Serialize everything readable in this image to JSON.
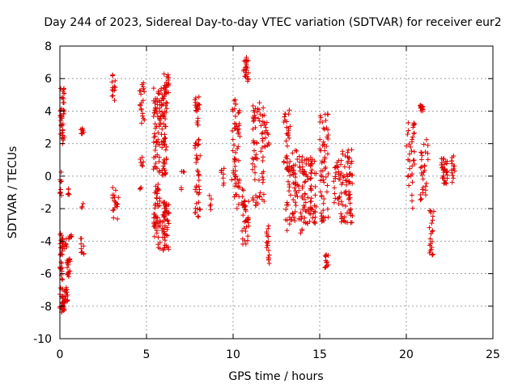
{
  "chart_data": {
    "type": "scatter",
    "title": "Day 244 of 2023, Sidereal Day-to-day VTEC variation (SDTVAR) for receiver eur2",
    "xlabel": "GPS time / hours",
    "ylabel": "SDTVAR / TECUs",
    "xlim": [
      0,
      25
    ],
    "ylim": [
      -10,
      8
    ],
    "xticks": [
      0,
      5,
      10,
      15,
      20,
      25
    ],
    "yticks": [
      -10,
      -8,
      -6,
      -4,
      -2,
      0,
      2,
      4,
      6,
      8
    ],
    "grid": true,
    "marker": "+",
    "marker_color": "#e00000",
    "series": [
      {
        "name": "SDTVAR",
        "clusters": [
          {
            "x": [
              0.0,
              0.15
            ],
            "y": [
              -8.5,
              -3.5
            ],
            "n": 40
          },
          {
            "x": [
              0.0,
              0.25
            ],
            "y": [
              2.0,
              5.4
            ],
            "n": 40
          },
          {
            "x": [
              0.0,
              0.1
            ],
            "y": [
              -1.2,
              0.3
            ],
            "n": 10
          },
          {
            "x": [
              0.15,
              0.45
            ],
            "y": [
              -8.3,
              -6.8
            ],
            "n": 30
          },
          {
            "x": [
              0.15,
              0.4
            ],
            "y": [
              -4.5,
              -3.8
            ],
            "n": 12
          },
          {
            "x": [
              0.4,
              0.6
            ],
            "y": [
              -6.2,
              -5.0
            ],
            "n": 18
          },
          {
            "x": [
              0.5,
              0.7
            ],
            "y": [
              -4.0,
              -3.6
            ],
            "n": 6
          },
          {
            "x": [
              0.45,
              0.55
            ],
            "y": [
              -1.5,
              -0.7
            ],
            "n": 5
          },
          {
            "x": [
              1.2,
              1.4
            ],
            "y": [
              -4.8,
              -3.8
            ],
            "n": 10
          },
          {
            "x": [
              1.2,
              1.4
            ],
            "y": [
              2.4,
              3.0
            ],
            "n": 8
          },
          {
            "x": [
              1.25,
              1.35
            ],
            "y": [
              -2.4,
              -1.6
            ],
            "n": 3
          },
          {
            "x": [
              3.0,
              3.2
            ],
            "y": [
              4.6,
              6.3
            ],
            "n": 14
          },
          {
            "x": [
              3.0,
              3.4
            ],
            "y": [
              -2.8,
              -0.6
            ],
            "n": 18
          },
          {
            "x": [
              4.6,
              4.9
            ],
            "y": [
              3.0,
              5.8
            ],
            "n": 20
          },
          {
            "x": [
              4.6,
              4.9
            ],
            "y": [
              0.6,
              1.2
            ],
            "n": 6
          },
          {
            "x": [
              4.6,
              4.75
            ],
            "y": [
              -1.0,
              -0.6
            ],
            "n": 3
          },
          {
            "x": [
              5.4,
              6.2
            ],
            "y": [
              0.0,
              5.5
            ],
            "n": 120
          },
          {
            "x": [
              5.4,
              5.8
            ],
            "y": [
              -4.5,
              -0.5
            ],
            "n": 50
          },
          {
            "x": [
              5.9,
              6.3
            ],
            "y": [
              -4.6,
              -1.5
            ],
            "n": 50
          },
          {
            "x": [
              6.0,
              6.3
            ],
            "y": [
              5.0,
              6.3
            ],
            "n": 20
          },
          {
            "x": [
              7.0,
              7.2
            ],
            "y": [
              0.1,
              0.4
            ],
            "n": 3
          },
          {
            "x": [
              7.0,
              7.2
            ],
            "y": [
              -0.9,
              -0.6
            ],
            "n": 2
          },
          {
            "x": [
              7.8,
              8.1
            ],
            "y": [
              -2.6,
              5.0
            ],
            "n": 60
          },
          {
            "x": [
              8.6,
              8.8
            ],
            "y": [
              -2.4,
              -1.0
            ],
            "n": 5
          },
          {
            "x": [
              9.3,
              9.5
            ],
            "y": [
              -0.6,
              0.5
            ],
            "n": 8
          },
          {
            "x": [
              9.9,
              10.4
            ],
            "y": [
              -2.0,
              4.8
            ],
            "n": 60
          },
          {
            "x": [
              10.5,
              10.9
            ],
            "y": [
              -4.2,
              -0.8
            ],
            "n": 35
          },
          {
            "x": [
              10.6,
              10.9
            ],
            "y": [
              5.8,
              7.4
            ],
            "n": 25
          },
          {
            "x": [
              11.1,
              11.8
            ],
            "y": [
              -2.0,
              4.6
            ],
            "n": 70
          },
          {
            "x": [
              11.9,
              12.1
            ],
            "y": [
              -5.4,
              -2.6
            ],
            "n": 18
          },
          {
            "x": [
              11.8,
              12.1
            ],
            "y": [
              1.8,
              3.3
            ],
            "n": 14
          },
          {
            "x": [
              12.9,
              13.3
            ],
            "y": [
              0.0,
              4.3
            ],
            "n": 30
          },
          {
            "x": [
              13.0,
              14.0
            ],
            "y": [
              -3.5,
              1.8
            ],
            "n": 80
          },
          {
            "x": [
              14.0,
              14.8
            ],
            "y": [
              -3.0,
              1.2
            ],
            "n": 80
          },
          {
            "x": [
              15.0,
              15.5
            ],
            "y": [
              -2.8,
              4.0
            ],
            "n": 60
          },
          {
            "x": [
              15.3,
              15.5
            ],
            "y": [
              -5.7,
              -4.8
            ],
            "n": 12
          },
          {
            "x": [
              15.8,
              16.2
            ],
            "y": [
              -2.0,
              1.0
            ],
            "n": 25
          },
          {
            "x": [
              16.2,
              16.9
            ],
            "y": [
              -3.0,
              1.7
            ],
            "n": 70
          },
          {
            "x": [
              20.0,
              20.5
            ],
            "y": [
              -2.2,
              3.4
            ],
            "n": 35
          },
          {
            "x": [
              20.7,
              21.0
            ],
            "y": [
              4.0,
              4.4
            ],
            "n": 14
          },
          {
            "x": [
              20.8,
              21.3
            ],
            "y": [
              -1.5,
              2.3
            ],
            "n": 30
          },
          {
            "x": [
              21.3,
              21.6
            ],
            "y": [
              -5.0,
              -2.0
            ],
            "n": 22
          },
          {
            "x": [
              22.0,
              22.4
            ],
            "y": [
              -0.5,
              1.1
            ],
            "n": 30
          },
          {
            "x": [
              22.6,
              22.8
            ],
            "y": [
              -0.7,
              1.4
            ],
            "n": 14
          }
        ]
      }
    ]
  }
}
